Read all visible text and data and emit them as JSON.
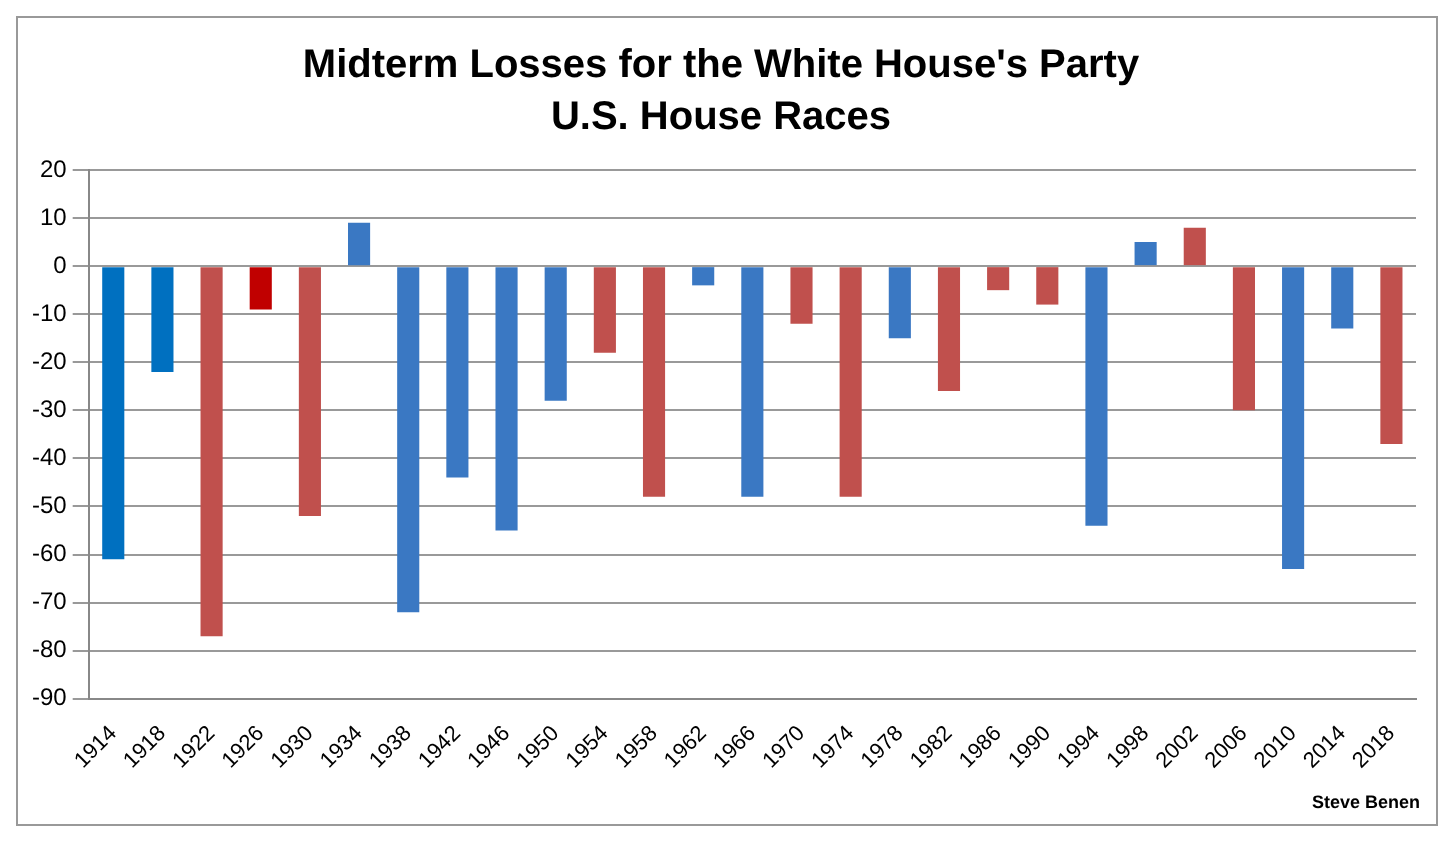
{
  "chart_data": {
    "type": "bar",
    "title": "Midterm Losses for the White House's Party",
    "subtitle": "U.S. House Races",
    "categories": [
      "1914",
      "1918",
      "1922",
      "1926",
      "1930",
      "1934",
      "1938",
      "1942",
      "1946",
      "1950",
      "1954",
      "1958",
      "1962",
      "1966",
      "1970",
      "1974",
      "1978",
      "1982",
      "1986",
      "1990",
      "1994",
      "1998",
      "2002",
      "2006",
      "2010",
      "2014",
      "2018"
    ],
    "values": [
      -61,
      -22,
      -77,
      -9,
      -52,
      9,
      -72,
      -44,
      -55,
      -28,
      -18,
      -48,
      -4,
      -48,
      -12,
      -48,
      -15,
      -26,
      -5,
      -8,
      -54,
      5,
      8,
      -30,
      -63,
      -13,
      -37
    ],
    "colors": [
      "#0070c0",
      "#0070c0",
      "#c0504d",
      "#c00000",
      "#c0504d",
      "#3a78c3",
      "#3a78c3",
      "#3a78c3",
      "#3a78c3",
      "#3a78c3",
      "#c0504d",
      "#c0504d",
      "#3a78c3",
      "#3a78c3",
      "#c0504d",
      "#c0504d",
      "#3a78c3",
      "#c0504d",
      "#c0504d",
      "#c0504d",
      "#3a78c3",
      "#3a78c3",
      "#c0504d",
      "#c0504d",
      "#3a78c3",
      "#3a78c3",
      "#c0504d"
    ],
    "ylim": [
      -90,
      20
    ],
    "yticks": [
      -90,
      -80,
      -70,
      -60,
      -50,
      -40,
      -30,
      -20,
      -10,
      0,
      10,
      20
    ],
    "grid": "y",
    "annotations": [
      "Steve Benen"
    ]
  }
}
